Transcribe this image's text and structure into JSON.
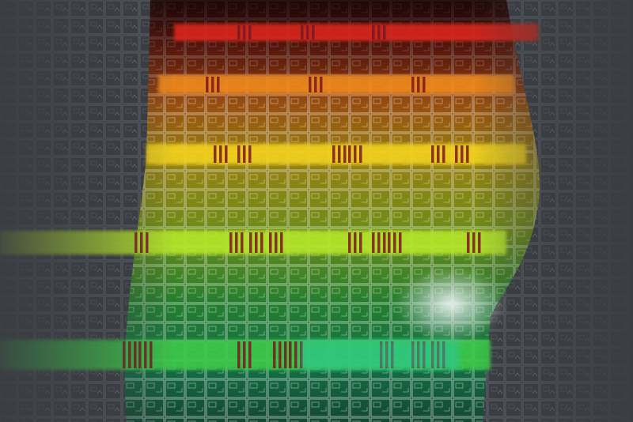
{
  "photo": {
    "subject": "silicon-wafer-macro",
    "colors": {
      "background_gray": "#3a3d42",
      "grid_line": "#5f646b",
      "glow_red": "#d8281a",
      "glow_orange": "#f08a1c",
      "glow_yellow": "#f2d21e",
      "glow_lime": "#b6e62a",
      "glow_green": "#3ec94a",
      "glow_cyan": "#27c9a8",
      "die_stripe_dark": "#7a1820",
      "highlight": "#f4f6f8"
    }
  }
}
